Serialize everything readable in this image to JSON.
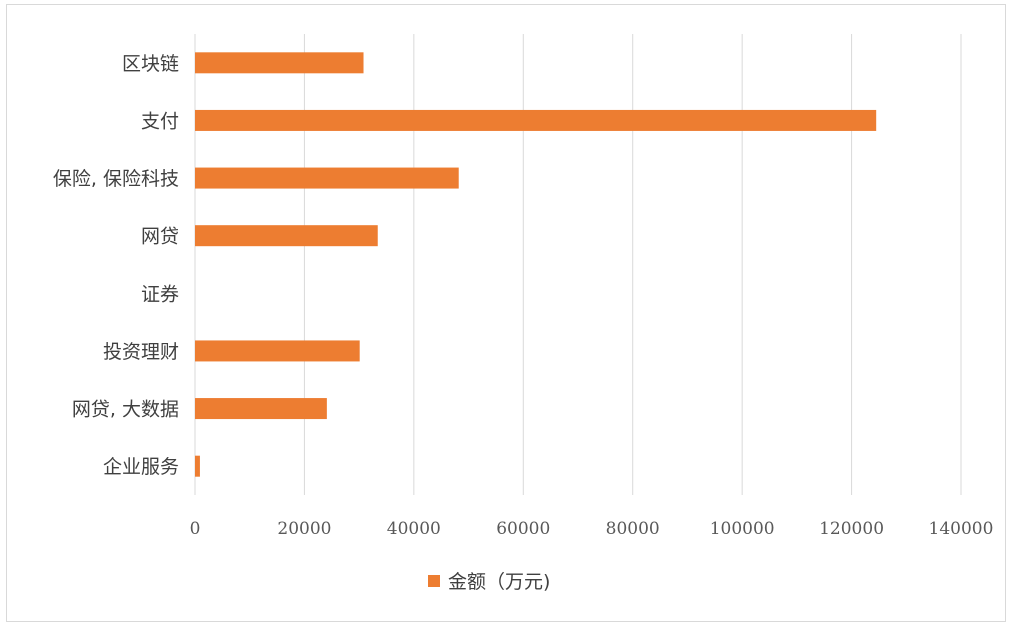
{
  "chart_data": {
    "type": "bar",
    "orientation": "horizontal",
    "categories": [
      "区块链",
      "支付",
      "保险, 保险科技",
      "网贷",
      "证券",
      "投资理财",
      "网贷, 大数据",
      "企业服务"
    ],
    "series": [
      {
        "name": "金额（万元)",
        "values": [
          30800,
          124500,
          48200,
          33400,
          0,
          30100,
          24100,
          900
        ],
        "color": "#ED7D31"
      }
    ],
    "xlim": [
      0,
      140000
    ],
    "xticks": [
      0,
      20000,
      40000,
      60000,
      80000,
      100000,
      120000,
      140000
    ],
    "grid": true,
    "legend_position": "bottom"
  }
}
